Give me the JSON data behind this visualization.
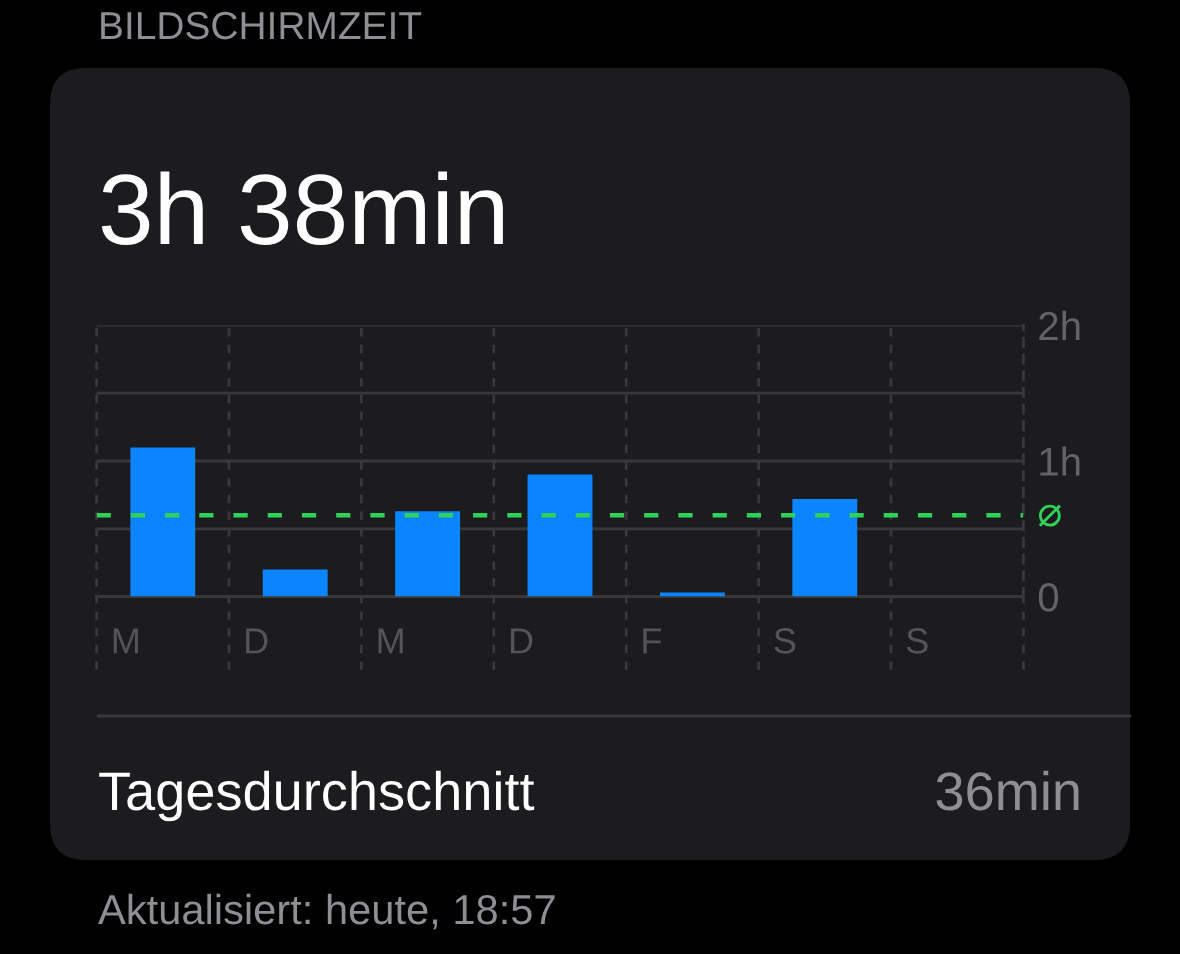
{
  "chart_data": {
    "type": "bar",
    "title": "BILDSCHIRMZEIT",
    "subtitle": "3h 38min",
    "categories": [
      "M",
      "D",
      "M",
      "D",
      "F",
      "S",
      "S"
    ],
    "values": [
      1.1,
      0.2,
      0.63,
      0.9,
      0.03,
      0.72,
      null
    ],
    "color": "#0a84ff",
    "ylim": [
      0,
      2
    ],
    "yticks": [
      0,
      {
        "value": 0.5,
        "label": null
      },
      {
        "value": 1,
        "label": "1h"
      },
      {
        "value": 1.5,
        "label": null
      },
      {
        "value": 2,
        "label": "2h"
      }
    ],
    "grid": true,
    "ref_lines": [
      {
        "axis": "y",
        "value": 0.6,
        "label": "⌀",
        "color": "#30d158",
        "line_style": "dashed"
      }
    ],
    "annotations": [
      "Tagesdurchschnitt",
      "36min",
      "Aktualisiert: heute, 18:57"
    ]
  }
}
